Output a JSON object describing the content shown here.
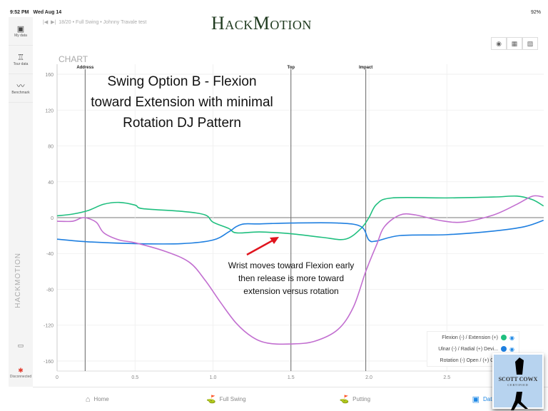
{
  "status": {
    "time": "9:52 PM",
    "date": "Wed Aug 14",
    "battery": "92%"
  },
  "sidebar": {
    "items": [
      {
        "label": "My data",
        "icon": "chart-folder-icon"
      },
      {
        "label": "Tour data",
        "icon": "trophy-icon"
      },
      {
        "label": "Benchmark",
        "icon": "trend-icon"
      }
    ],
    "logo": "HACKMOTION",
    "connection": "Disconnected"
  },
  "topbar": {
    "breadcrumb": "18/20  •  Full Swing  •  Johnny Travale test"
  },
  "brand": "HackMotion",
  "chart_heading": "CHART",
  "annotations": {
    "title": "Swing Option B - Flexion toward Extension with minimal Rotation DJ Pattern",
    "note": "Wrist moves toward Flexion early then release is more toward extension versus rotation"
  },
  "legend": [
    {
      "label": "Flexion (-) / Extension (+)",
      "color": "#1fbf7f"
    },
    {
      "label": "Ulnar (-) / Radial (+) Devi...",
      "color": "#1e7fe0"
    },
    {
      "label": "Rotation (-) Open / (+) C...",
      "color": "#c26fd0"
    }
  ],
  "nav": [
    {
      "label": "Home",
      "icon": "home-icon"
    },
    {
      "label": "Full Swing",
      "icon": "golfer-icon"
    },
    {
      "label": "Putting",
      "icon": "putting-icon"
    },
    {
      "label": "Data",
      "icon": "data-icon",
      "active": true
    }
  ],
  "badge": {
    "name": "SCOTT COWX",
    "sub": "CERTIFIED"
  },
  "chart_data": {
    "type": "line",
    "xlim": [
      0,
      3.12
    ],
    "ylim": [
      -170,
      170
    ],
    "xticks": [
      0,
      0.5,
      1.0,
      1.5,
      2.0,
      2.5
    ],
    "xtick_labels": [
      "0",
      "0.5",
      "1.0",
      "1.5",
      "2.0",
      "2.5"
    ],
    "yticks": [
      160,
      120,
      80,
      40,
      0,
      -40,
      -80,
      -120,
      -160
    ],
    "grid": true,
    "legend": "bottom-right",
    "events": [
      {
        "label": "Address",
        "x": 0.18
      },
      {
        "label": "Top",
        "x": 1.5
      },
      {
        "label": "Impact",
        "x": 1.98
      }
    ],
    "series": [
      {
        "name": "Flexion (-) / Extension (+)",
        "color": "#1fbf7f",
        "x": [
          0,
          0.1,
          0.2,
          0.3,
          0.4,
          0.5,
          0.55,
          0.8,
          0.95,
          1.0,
          1.1,
          1.15,
          1.3,
          1.5,
          1.7,
          1.85,
          1.95,
          2.0,
          2.05,
          2.15,
          2.5,
          2.8,
          2.95,
          3.05,
          3.12
        ],
        "y": [
          2,
          4,
          8,
          15,
          17,
          14,
          10,
          7,
          3,
          -5,
          -12,
          -17,
          -16,
          -18,
          -22,
          -24,
          -12,
          0,
          15,
          22,
          22,
          23,
          24,
          20,
          13
        ]
      },
      {
        "name": "Ulnar (-) / Radial (+) Devi...",
        "color": "#1e7fe0",
        "x": [
          0,
          0.2,
          0.5,
          0.8,
          1.0,
          1.1,
          1.15,
          1.2,
          1.3,
          1.5,
          1.8,
          1.95,
          2.0,
          2.05,
          2.2,
          2.5,
          2.8,
          3.0,
          3.12
        ],
        "y": [
          -24,
          -27,
          -29,
          -29,
          -25,
          -16,
          -10,
          -7,
          -7,
          -6,
          -6,
          -10,
          -25,
          -26,
          -20,
          -19,
          -15,
          -10,
          -3
        ]
      },
      {
        "name": "Rotation (-) Open / (+) C...",
        "color": "#c26fd0",
        "x": [
          0,
          0.1,
          0.17,
          0.25,
          0.3,
          0.4,
          0.5,
          0.7,
          0.85,
          0.95,
          1.05,
          1.15,
          1.25,
          1.35,
          1.5,
          1.65,
          1.8,
          1.9,
          1.98,
          2.05,
          2.1,
          2.2,
          2.3,
          2.45,
          2.6,
          2.8,
          2.95,
          3.05,
          3.12
        ],
        "y": [
          -4,
          -4,
          0,
          -5,
          -17,
          -25,
          -28,
          -38,
          -50,
          -70,
          -95,
          -118,
          -133,
          -140,
          -141,
          -138,
          -125,
          -100,
          -60,
          -30,
          -10,
          3,
          3,
          -3,
          -5,
          3,
          15,
          24,
          23
        ]
      }
    ]
  }
}
